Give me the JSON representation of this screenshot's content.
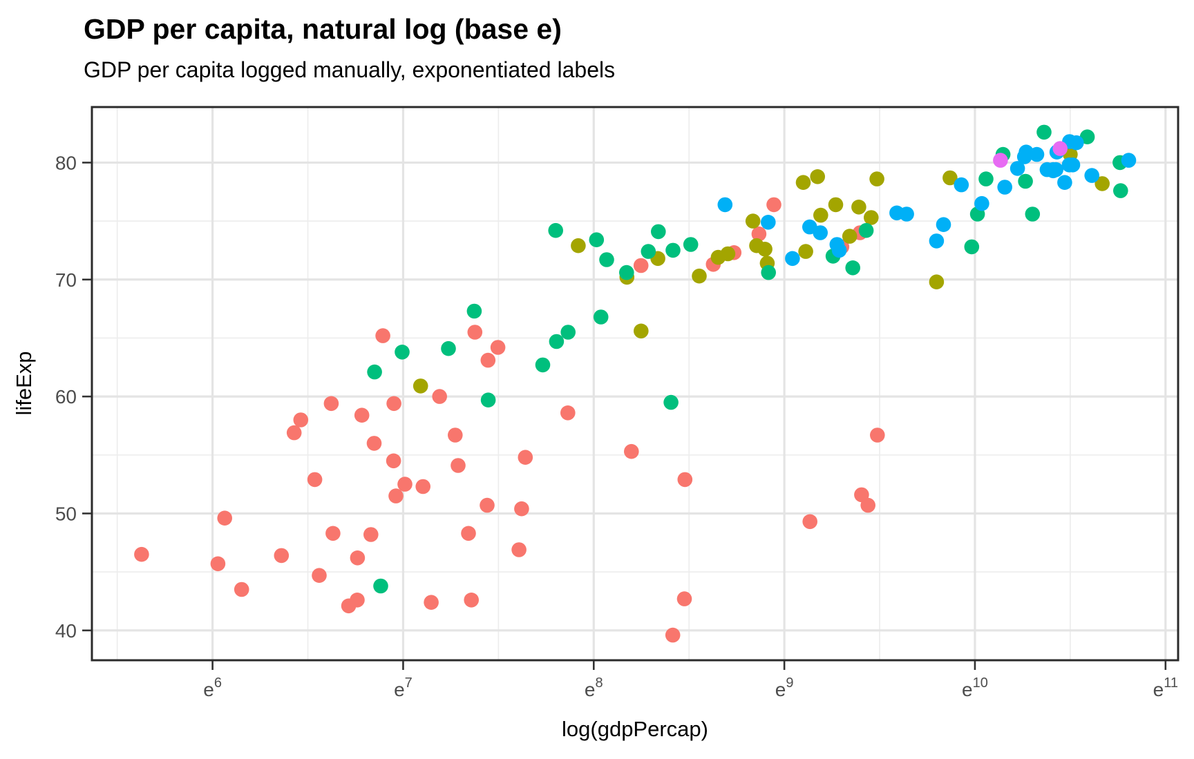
{
  "header": {
    "title": "GDP per capita, natural log (base e)",
    "subtitle": "GDP per capita logged manually, exponentiated labels"
  },
  "chart_data": {
    "type": "scatter",
    "title": "GDP per capita, natural log (base e)",
    "subtitle": "GDP per capita logged manually, exponentiated labels",
    "xlabel": "log(gdpPercap)",
    "ylabel": "lifeExp",
    "x_scale": "natural-log",
    "x_tick_base": "e",
    "x_ticks_exponents": [
      6,
      7,
      8,
      9,
      10,
      11
    ],
    "x_minor_exponents": [
      5.5,
      6.5,
      7.5,
      8.5,
      9.5,
      10.5
    ],
    "y_ticks": [
      40,
      50,
      60,
      70,
      80
    ],
    "y_minor_ticks": [
      45,
      55,
      65,
      75
    ],
    "x_domain_ln": [
      5.367,
      11.066
    ],
    "y_domain": [
      37.45,
      84.75
    ],
    "grid": "major+minor",
    "legend_position": "none",
    "point_radius_px": 10.8,
    "series": [
      {
        "name": "red",
        "color": "#F8766D",
        "points": [
          [
            6223,
            72.3
          ],
          [
            4797,
            42.7
          ],
          [
            1441,
            56.7
          ],
          [
            12570,
            50.7
          ],
          [
            1217,
            52.3
          ],
          [
            430,
            49.6
          ],
          [
            2042,
            50.4
          ],
          [
            706,
            44.7
          ],
          [
            1704,
            50.7
          ],
          [
            986,
            65.2
          ],
          [
            278,
            46.5
          ],
          [
            3632,
            55.3
          ],
          [
            1545,
            48.3
          ],
          [
            2082,
            54.8
          ],
          [
            5581,
            71.3
          ],
          [
            12154,
            51.6
          ],
          [
            641,
            58.0
          ],
          [
            690,
            52.9
          ],
          [
            13206,
            56.7
          ],
          [
            752,
            59.4
          ],
          [
            1328,
            60.0
          ],
          [
            942,
            56.0
          ],
          [
            579,
            46.4
          ],
          [
            1463,
            54.1
          ],
          [
            1569,
            42.6
          ],
          [
            415,
            45.7
          ],
          [
            12057,
            74.0
          ],
          [
            1045,
            59.4
          ],
          [
            759,
            48.3
          ],
          [
            1043,
            54.5
          ],
          [
            1803,
            64.2
          ],
          [
            10957,
            72.8
          ],
          [
            3820,
            71.2
          ],
          [
            824,
            42.1
          ],
          [
            4811,
            52.9
          ],
          [
            619,
            56.9
          ],
          [
            2014,
            46.9
          ],
          [
            7670,
            76.4
          ],
          [
            863,
            46.2
          ],
          [
            1598,
            65.5
          ],
          [
            1712,
            63.1
          ],
          [
            862,
            42.6
          ],
          [
            926,
            48.2
          ],
          [
            9270,
            49.3
          ],
          [
            2602,
            58.6
          ],
          [
            4513,
            39.6
          ],
          [
            1107,
            52.5
          ],
          [
            883,
            58.4
          ],
          [
            7093,
            73.9
          ],
          [
            1056,
            51.5
          ],
          [
            1271,
            42.4
          ],
          [
            470,
            43.5
          ]
        ]
      },
      {
        "name": "olive",
        "color": "#A3A500",
        "points": [
          [
            12779,
            75.3
          ],
          [
            3822,
            65.6
          ],
          [
            9066,
            72.4
          ],
          [
            36319,
            80.7
          ],
          [
            13172,
            78.6
          ],
          [
            7007,
            72.9
          ],
          [
            9645,
            78.8
          ],
          [
            8948,
            78.3
          ],
          [
            6025,
            72.2
          ],
          [
            6873,
            75.0
          ],
          [
            5728,
            71.9
          ],
          [
            5186,
            70.3
          ],
          [
            1202,
            60.9
          ],
          [
            3548,
            70.2
          ],
          [
            7321,
            72.6
          ],
          [
            11978,
            76.2
          ],
          [
            2749,
            72.9
          ],
          [
            9809,
            75.5
          ],
          [
            4173,
            71.8
          ],
          [
            7409,
            71.4
          ],
          [
            19329,
            78.7
          ],
          [
            18009,
            69.8
          ],
          [
            42952,
            78.2
          ],
          [
            10611,
            76.4
          ],
          [
            11416,
            73.7
          ]
        ]
      },
      {
        "name": "green",
        "color": "#00BF7D",
        "points": [
          [
            975,
            43.8
          ],
          [
            29796,
            75.6
          ],
          [
            1391,
            64.1
          ],
          [
            1714,
            59.7
          ],
          [
            4959,
            73.0
          ],
          [
            39725,
            82.2
          ],
          [
            2452,
            64.7
          ],
          [
            3541,
            70.6
          ],
          [
            11606,
            71.0
          ],
          [
            4471,
            59.5
          ],
          [
            25523,
            80.7
          ],
          [
            31656,
            82.6
          ],
          [
            4519,
            72.5
          ],
          [
            1593,
            67.3
          ],
          [
            23348,
            78.6
          ],
          [
            47307,
            77.6
          ],
          [
            10461,
            72.0
          ],
          [
            12452,
            74.2
          ],
          [
            3096,
            66.8
          ],
          [
            944,
            62.1
          ],
          [
            1091,
            63.8
          ],
          [
            22316,
            75.6
          ],
          [
            2606,
            65.5
          ],
          [
            3190,
            71.7
          ],
          [
            21655,
            72.8
          ],
          [
            47143,
            80.0
          ],
          [
            3970,
            72.4
          ],
          [
            4184,
            74.1
          ],
          [
            28718,
            78.4
          ],
          [
            7458,
            70.6
          ],
          [
            2441,
            74.2
          ],
          [
            3025,
            73.4
          ],
          [
            2281,
            62.7
          ]
        ]
      },
      {
        "name": "blue",
        "color": "#00B0F6",
        "points": [
          [
            5937,
            76.4
          ],
          [
            36126,
            79.8
          ],
          [
            33693,
            79.4
          ],
          [
            7446,
            74.9
          ],
          [
            10681,
            73.0
          ],
          [
            14619,
            75.7
          ],
          [
            22833,
            76.5
          ],
          [
            35278,
            78.3
          ],
          [
            33207,
            79.3
          ],
          [
            30470,
            80.7
          ],
          [
            32170,
            79.4
          ],
          [
            27538,
            79.5
          ],
          [
            18009,
            73.3
          ],
          [
            36181,
            81.8
          ],
          [
            40676,
            78.9
          ],
          [
            28570,
            80.5
          ],
          [
            9254,
            74.5
          ],
          [
            36798,
            79.8
          ],
          [
            49357,
            80.2
          ],
          [
            15390,
            75.6
          ],
          [
            20510,
            78.1
          ],
          [
            10808,
            72.5
          ],
          [
            9787,
            74.0
          ],
          [
            18678,
            74.7
          ],
          [
            25768,
            77.9
          ],
          [
            28821,
            80.9
          ],
          [
            33860,
            80.9
          ],
          [
            37506,
            81.7
          ],
          [
            8458,
            71.8
          ],
          [
            33203,
            79.4
          ]
        ]
      },
      {
        "name": "magenta",
        "color": "#E76BF3",
        "points": [
          [
            34435,
            81.2
          ],
          [
            25185,
            80.2
          ]
        ]
      }
    ]
  }
}
